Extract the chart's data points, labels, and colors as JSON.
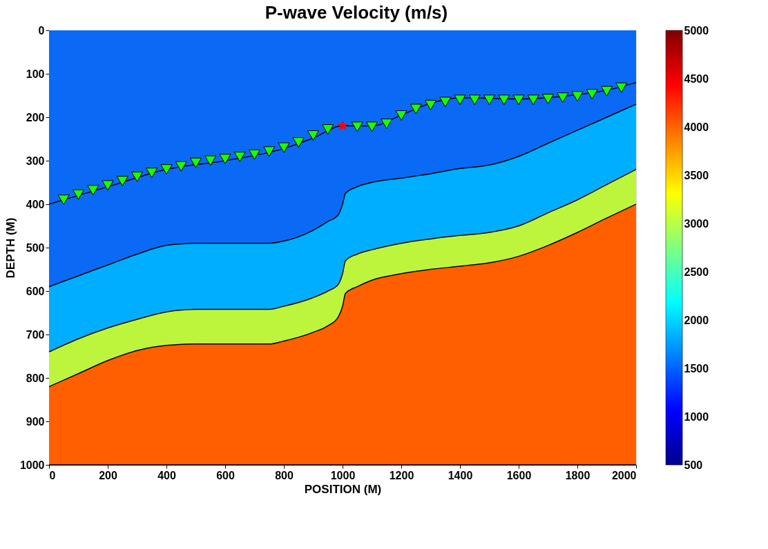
{
  "chart_data": {
    "type": "area",
    "title": "P-wave Velocity (m/s)",
    "xlabel": "POSITION (M)",
    "ylabel": "DEPTH (M)",
    "stacked": true,
    "x": [
      0,
      100,
      200,
      300,
      400,
      500,
      750,
      800,
      900,
      950,
      985,
      1000,
      1010,
      1050,
      1100,
      1200,
      1300,
      1400,
      1500,
      1600,
      1700,
      1800,
      1900,
      2000
    ],
    "series": [
      {
        "color": "#0a6af5",
        "values": [
          590,
          565,
          540,
          515,
          495,
          490,
          490,
          485,
          460,
          440,
          425,
          400,
          375,
          360,
          350,
          340,
          330,
          318,
          310,
          290,
          260,
          230,
          200,
          170
        ]
      },
      {
        "color": "#00aeff",
        "values": [
          150,
          145,
          145,
          150,
          153,
          152,
          152,
          150,
          155,
          160,
          160,
          160,
          155,
          155,
          155,
          150,
          150,
          154,
          155,
          160,
          160,
          160,
          155,
          150
        ]
      },
      {
        "color": "#bdf53d",
        "values": [
          80,
          80,
          75,
          72,
          77,
          80,
          80,
          80,
          80,
          80,
          75,
          75,
          75,
          75,
          70,
          70,
          70,
          71,
          70,
          70,
          75,
          75,
          77,
          80
        ]
      },
      {
        "color": "#ff5f00",
        "values": [
          180,
          210,
          240,
          263,
          275,
          278,
          278,
          285,
          305,
          320,
          340,
          365,
          395,
          410,
          425,
          440,
          450,
          457,
          465,
          480,
          505,
          535,
          568,
          600
        ]
      },
      {
        "type": "line",
        "color": "#000000",
        "x": [
          0,
          200,
          400,
          600,
          800,
          900,
          1000,
          1100,
          1200,
          1300,
          1400,
          1600,
          1800,
          1900,
          2000
        ],
        "values": [
          400,
          360,
          320,
          300,
          272,
          248,
          220,
          220,
          195,
          168,
          155,
          158,
          148,
          138,
          120
        ]
      },
      {
        "type": "scatter",
        "marker": "triangle",
        "color": "#1aff00",
        "x": [
          50,
          100,
          150,
          200,
          250,
          300,
          350,
          400,
          450,
          500,
          550,
          600,
          650,
          700,
          750,
          800,
          850,
          900,
          950,
          1050,
          1100,
          1150,
          1200,
          1250,
          1300,
          1350,
          1400,
          1450,
          1500,
          1550,
          1600,
          1650,
          1700,
          1750,
          1800,
          1850,
          1900,
          1950
        ],
        "values": [
          390,
          378,
          368,
          357,
          347,
          337,
          328,
          320,
          313,
          305,
          300,
          296,
          291,
          286,
          279,
          270,
          258,
          242,
          228,
          222,
          222,
          215,
          196,
          181,
          172,
          165,
          160,
          160,
          160,
          160,
          160,
          160,
          158,
          155,
          152,
          147,
          140,
          132
        ]
      },
      {
        "type": "scatter",
        "marker": "star",
        "color": "#ff0000",
        "x": [
          1000
        ],
        "values": [
          220
        ]
      }
    ],
    "xlim": [
      0,
      2000
    ],
    "xticks": [
      0,
      200,
      400,
      600,
      800,
      1000,
      1200,
      1400,
      1600,
      1800,
      2000
    ],
    "ylim": [
      1000,
      0
    ],
    "yticks": [
      0,
      100,
      200,
      300,
      400,
      500,
      600,
      700,
      800,
      900,
      1000
    ],
    "clim": [
      500,
      5000
    ],
    "cticks": [
      500,
      1000,
      1500,
      2000,
      2500,
      3000,
      3500,
      4000,
      4500,
      5000
    ],
    "grid": false,
    "legend": false
  }
}
